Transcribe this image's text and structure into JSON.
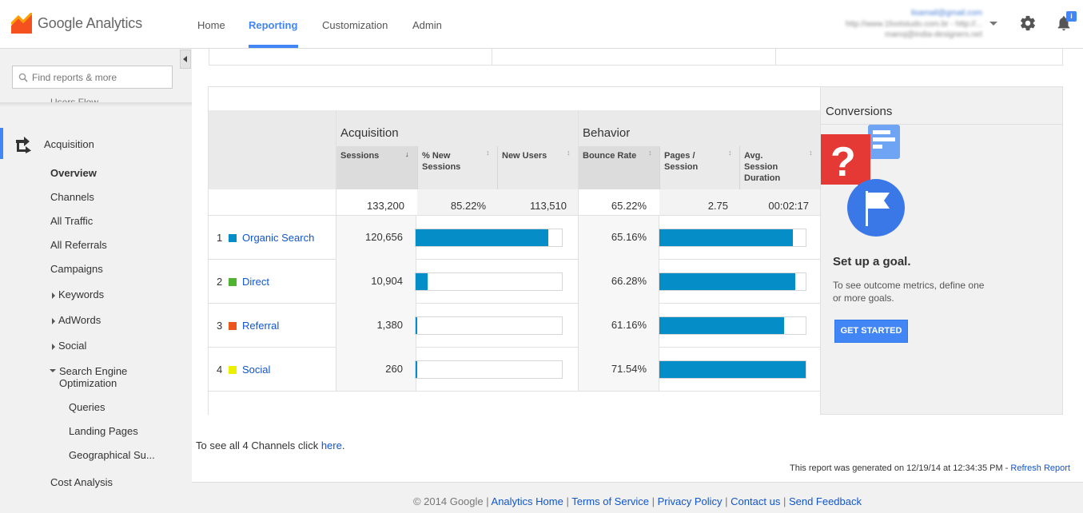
{
  "header": {
    "logo_text": "Google Analytics",
    "nav": [
      {
        "label": "Home"
      },
      {
        "label": "Reporting"
      },
      {
        "label": "Customization"
      },
      {
        "label": "Admin"
      }
    ],
    "active_nav": "Reporting",
    "account": {
      "email": "lisamail@gmail.com",
      "property": "http://www.1footstudo.com.br - http://...",
      "user": "manoj@india-designers.net"
    },
    "notification_badge": "i",
    "icons": [
      "gear-icon",
      "bell-icon"
    ]
  },
  "sidebar": {
    "search_placeholder": "Find reports & more",
    "partial_item": "Users Flow",
    "section": "Acquisition",
    "items": [
      {
        "label": "Overview"
      },
      {
        "label": "Channels"
      },
      {
        "label": "All Traffic"
      },
      {
        "label": "All Referrals"
      },
      {
        "label": "Campaigns"
      },
      {
        "label": "Keywords"
      },
      {
        "label": "AdWords"
      },
      {
        "label": "Social"
      },
      {
        "label": "Search Engine Optimization"
      },
      {
        "label": "Queries"
      },
      {
        "label": "Landing Pages"
      },
      {
        "label": "Geographical Su..."
      },
      {
        "label": "Cost Analysis"
      }
    ]
  },
  "table": {
    "groups": {
      "acquisition": "Acquisition",
      "behavior": "Behavior",
      "conversions": "Conversions"
    },
    "columns": [
      "Sessions",
      "% New Sessions",
      "New Users",
      "Bounce Rate",
      "Pages / Session",
      "Avg. Session Duration"
    ],
    "totals": {
      "sessions": "133,200",
      "pct_new": "85.22%",
      "new_users": "113,510",
      "bounce": "65.22%",
      "pages": "2.75",
      "duration": "00:02:17"
    },
    "rows": [
      {
        "rank": "1",
        "channel": "Organic Search",
        "color": "#058dc7",
        "sessions": "120,656",
        "sessions_share": 0.906,
        "bounce": "65.16%",
        "bounce_share": 0.911
      },
      {
        "rank": "2",
        "channel": "Direct",
        "color": "#50b432",
        "sessions": "10,904",
        "sessions_share": 0.082,
        "bounce": "66.28%",
        "bounce_share": 0.927
      },
      {
        "rank": "3",
        "channel": "Referral",
        "color": "#ed561b",
        "sessions": "1,380",
        "sessions_share": 0.01,
        "bounce": "61.16%",
        "bounce_share": 0.855
      },
      {
        "rank": "4",
        "channel": "Social",
        "color": "#edef00",
        "sessions": "260",
        "sessions_share": 0.002,
        "bounce": "71.54%",
        "bounce_share": 1.0
      }
    ]
  },
  "conversions": {
    "heading": "Set up a goal.",
    "description": "To see outcome metrics, define one or more goals.",
    "button": "GET STARTED"
  },
  "see_all": {
    "text": "To see all 4 Channels click ",
    "link": "here",
    "suffix": "."
  },
  "generated": {
    "text": "This report was generated on 12/19/14 at 12:34:35 PM - ",
    "link": "Refresh Report"
  },
  "footer": {
    "copyright": "© 2014 Google",
    "links": [
      "Analytics Home",
      "Terms of Service",
      "Privacy Policy",
      "Contact us",
      "Send Feedback"
    ]
  },
  "colors": {
    "accent": "#4285f4",
    "bar": "#058dc7",
    "link": "#1155cc"
  }
}
